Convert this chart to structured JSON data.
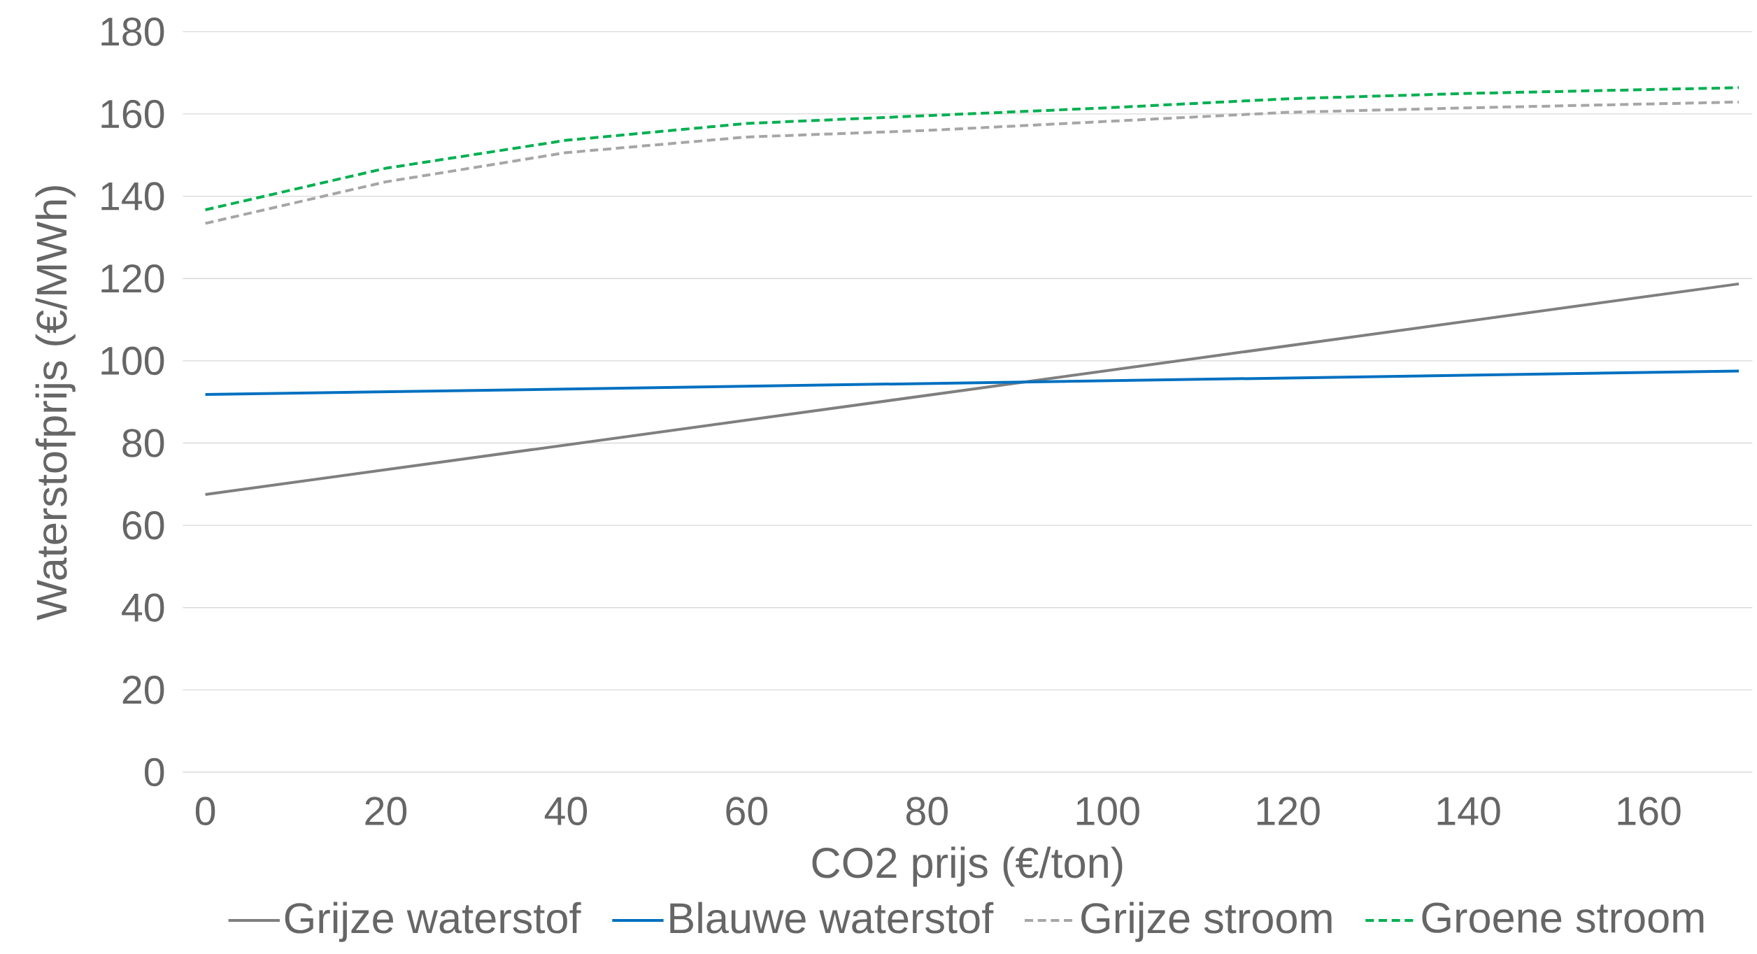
{
  "chart_data": {
    "type": "line",
    "xlabel": "CO2 prijs (€/ton)",
    "ylabel": "Waterstofprijs (€/MWh)",
    "xlim": [
      -2.5,
      171.5
    ],
    "ylim": [
      0,
      180
    ],
    "xticks": [
      0,
      20,
      40,
      60,
      80,
      100,
      120,
      140,
      160
    ],
    "yticks": [
      0,
      20,
      40,
      60,
      80,
      100,
      120,
      140,
      160,
      180
    ],
    "grid": "y",
    "legend": "bottom",
    "marker": "none",
    "series": [
      {
        "name": "Grijze waterstof",
        "color": "#7f7f7f",
        "line_style": "solid",
        "x": [
          0,
          170
        ],
        "values": [
          67.5,
          118.7
        ]
      },
      {
        "name": "Blauwe waterstof",
        "color": "#0070c0",
        "line_style": "solid",
        "x": [
          0,
          170
        ],
        "values": [
          91.8,
          97.5
        ]
      },
      {
        "name": "Grijze stroom",
        "color": "#a6a6a6",
        "line_style": "dashed",
        "x": [
          0,
          20,
          40,
          60,
          80,
          100,
          120,
          140,
          170
        ],
        "values": [
          133.4,
          143.5,
          150.6,
          154.4,
          156,
          158.2,
          160.4,
          161.5,
          162.9
        ]
      },
      {
        "name": "Groene stroom",
        "color": "#00b050",
        "line_style": "dashed",
        "x": [
          0,
          20,
          40,
          60,
          80,
          100,
          120,
          140,
          170
        ],
        "values": [
          136.7,
          146.8,
          153.6,
          157.7,
          159.6,
          161.5,
          163.7,
          165,
          166.4
        ]
      }
    ]
  }
}
